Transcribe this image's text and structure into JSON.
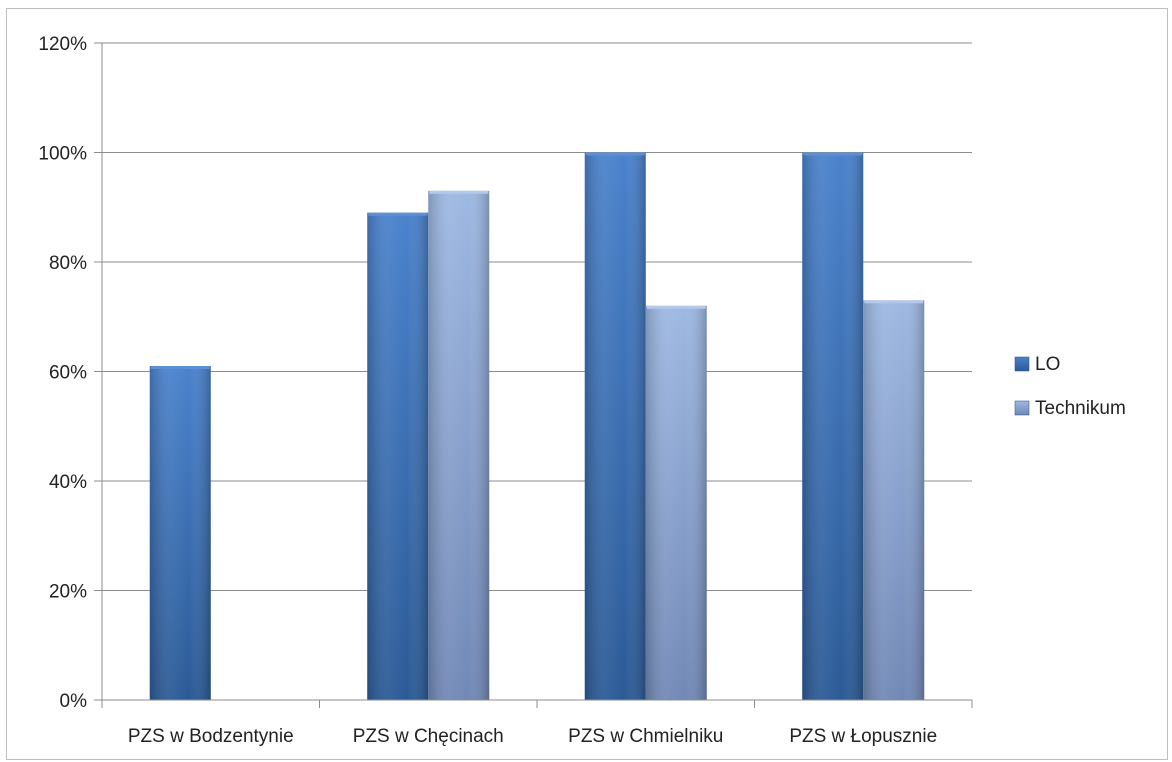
{
  "chart_data": {
    "type": "bar",
    "categories": [
      "PZS w Bodzentynie",
      "PZS w Chęcinach",
      "PZS w Chmielniku",
      "PZS w Łopusznie"
    ],
    "series": [
      {
        "name": "LO",
        "values": [
          61,
          89,
          100,
          100
        ],
        "color": "#3a6fb5"
      },
      {
        "name": "Technikum",
        "values": [
          null,
          93,
          72,
          73
        ],
        "color": "#8faad6"
      }
    ],
    "y_ticks": [
      "0%",
      "20%",
      "40%",
      "60%",
      "80%",
      "100%",
      "120%"
    ],
    "ylim": [
      0,
      120
    ],
    "y_unit": "%",
    "grid": true,
    "legend_position": "right"
  }
}
